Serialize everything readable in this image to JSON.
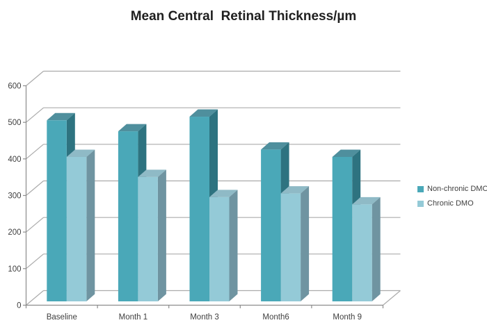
{
  "chart_data": {
    "type": "bar",
    "style": "3d-clustered-column",
    "title": "Mean Central  Retinal Thickness/µm",
    "categories": [
      "Baseline",
      "Month 1",
      "Month 3",
      "Month6",
      "Month 9"
    ],
    "series": [
      {
        "name": "Non-chronic DMO",
        "values": [
          495,
          465,
          505,
          415,
          395
        ],
        "color_front": "#4AA8B8",
        "color_side": "#2E7380",
        "color_top": "#4F8F9D"
      },
      {
        "name": "Chronic DMO",
        "values": [
          395,
          340,
          285,
          295,
          265
        ],
        "color_front": "#94CAD7",
        "color_side": "#6F94A1",
        "color_top": "#8FBAC6"
      }
    ],
    "xlabel": "",
    "ylabel": "",
    "ylim": [
      0,
      600
    ],
    "yticks": [
      0,
      100,
      200,
      300,
      400,
      500,
      600
    ],
    "grid": true,
    "legend_position": "right",
    "colors": {
      "gridline": "#ABABAB",
      "axis": "#8C8C8C",
      "tick_text": "#3F3F3F",
      "title_text": "#1F1F1F",
      "background": "#FFFFFF"
    }
  }
}
